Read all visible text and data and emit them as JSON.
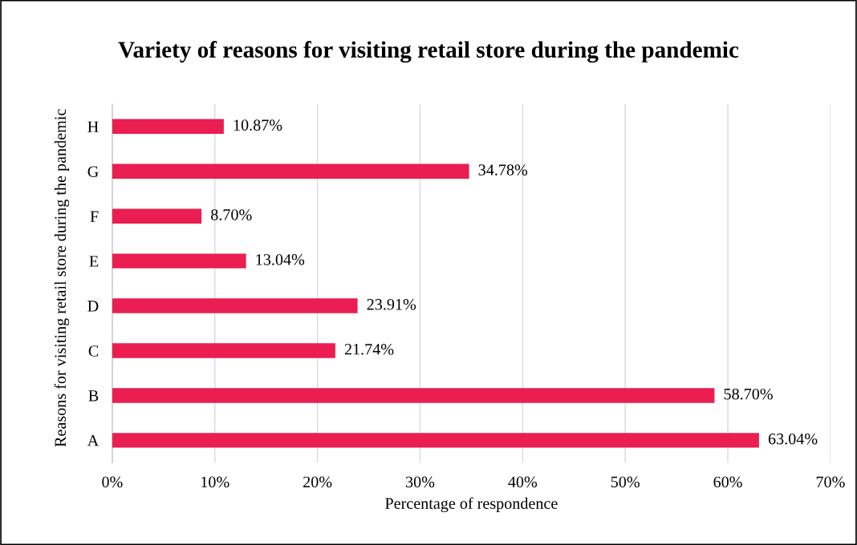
{
  "chart_data": {
    "type": "bar",
    "orientation": "horizontal",
    "title": "Variety of reasons for visiting retail store during the pandemic",
    "xlabel": "Percentage of respondence",
    "ylabel": "Reasons for visiting retail store during the pandemic",
    "categories": [
      "H",
      "G",
      "F",
      "E",
      "D",
      "C",
      "B",
      "A"
    ],
    "values": [
      10.87,
      34.78,
      8.7,
      13.04,
      23.91,
      21.74,
      58.7,
      63.04
    ],
    "value_labels": [
      "10.87%",
      "34.78%",
      "8.70%",
      "13.04%",
      "23.91%",
      "21.74%",
      "58.70%",
      "63.04%"
    ],
    "color": "#ea1e50",
    "xlim": [
      0,
      70
    ],
    "xticks": [
      {
        "value": 0,
        "label": "0%"
      },
      {
        "value": 10,
        "label": "10%"
      },
      {
        "value": 20,
        "label": "20%"
      },
      {
        "value": 30,
        "label": "30%"
      },
      {
        "value": 40,
        "label": "40%"
      },
      {
        "value": 50,
        "label": "50%"
      },
      {
        "value": 60,
        "label": "60%"
      },
      {
        "value": 70,
        "label": "70%"
      }
    ],
    "grid": "x",
    "legend": false
  }
}
